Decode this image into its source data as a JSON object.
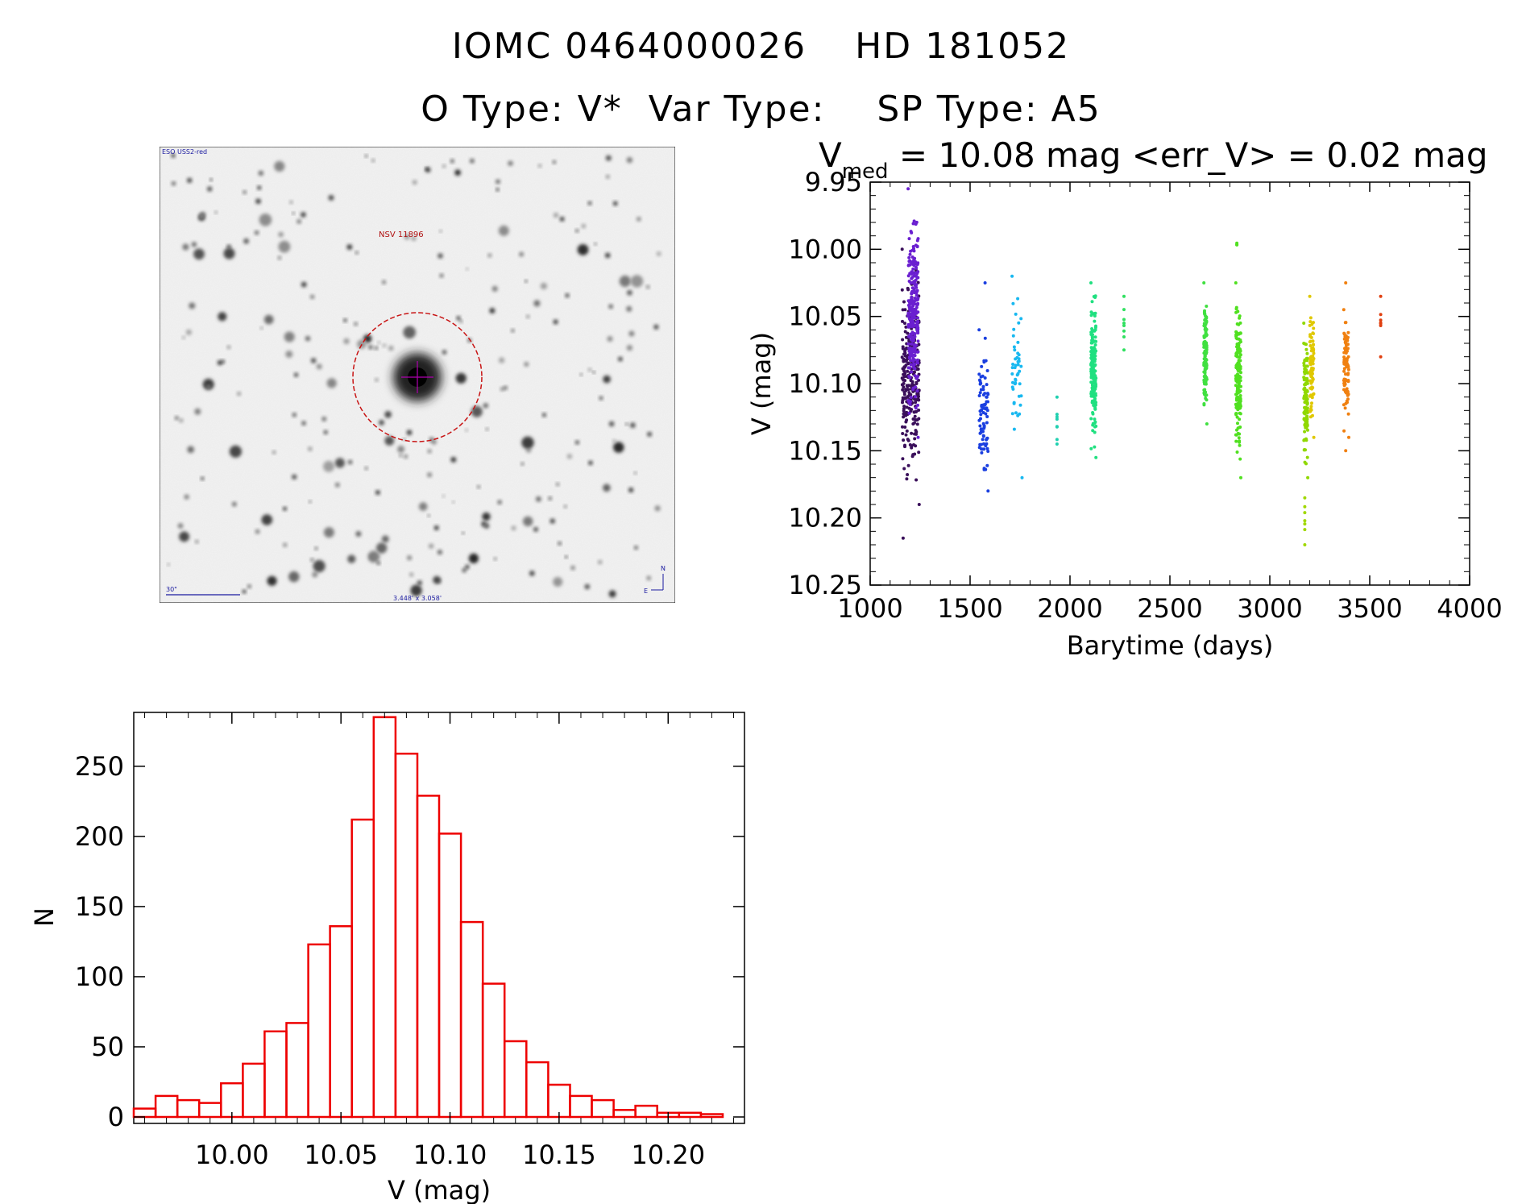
{
  "header": {
    "iomc_id": "IOMC 0464000026",
    "hd_id": "HD 181052",
    "o_type": "O Type: V*",
    "var_type": "Var Type:",
    "sp_type": "SP Type: A5"
  },
  "sky_image": {
    "survey": "ESO USS2-red",
    "object_label": "NSV 11896",
    "scale_label": "30\"",
    "size_label": "3.448' x 3.058'",
    "north": "N",
    "east": "E"
  },
  "colors": {
    "histogram": "#ee0000",
    "circle": "#c81414",
    "crosshair": "#b000b0"
  },
  "chart_data": [
    {
      "type": "scatter",
      "title_main": "V",
      "title_sub": "med",
      "title_rest": " = 10.08 mag <err_V> = 0.02 mag",
      "xlabel": "Barytime (days)",
      "ylabel": "V (mag)",
      "xlim": [
        1000,
        4000
      ],
      "ylim": [
        10.25,
        9.95
      ],
      "y_inverted": true,
      "x_ticks": [
        "1000",
        "1500",
        "2000",
        "2500",
        "3000",
        "3500",
        "4000"
      ],
      "y_ticks": [
        "9.95",
        "10.00",
        "10.05",
        "10.10",
        "10.15",
        "10.20",
        "10.25"
      ],
      "point_colors": "color encodes time (violet → red)",
      "groups": [
        {
          "x": 1160,
          "x_end": 1245,
          "ymin": 10.0,
          "ymax": 10.19,
          "n": 260,
          "color": "#3a0f5a"
        },
        {
          "x": 1190,
          "x_end": 1240,
          "ymin": 9.955,
          "ymax": 10.14,
          "n": 260,
          "color": "#6a1fd0"
        },
        {
          "x": 1165,
          "ymin": 10.215,
          "ymax": 10.215,
          "n": 1,
          "color": "#3a0f5a"
        },
        {
          "x": 1545,
          "x_end": 1590,
          "ymin": 10.06,
          "ymax": 10.18,
          "n": 80,
          "color": "#1a3fe0"
        },
        {
          "x": 1575,
          "ymin": 10.025,
          "ymax": 10.025,
          "n": 1,
          "color": "#1a3fe0"
        },
        {
          "x": 1710,
          "x_end": 1760,
          "ymin": 10.02,
          "ymax": 10.17,
          "n": 45,
          "color": "#18b8f0"
        },
        {
          "x": 1935,
          "ymin": 10.11,
          "ymax": 10.145,
          "n": 6,
          "color": "#20d0b0"
        },
        {
          "x": 2105,
          "x_end": 2130,
          "ymin": 10.025,
          "ymax": 10.155,
          "n": 160,
          "color": "#20e080"
        },
        {
          "x": 2270,
          "ymin": 10.035,
          "ymax": 10.075,
          "n": 6,
          "color": "#30e060"
        },
        {
          "x": 2670,
          "x_end": 2685,
          "ymin": 10.025,
          "ymax": 10.13,
          "n": 120,
          "color": "#40e040"
        },
        {
          "x": 2830,
          "x_end": 2855,
          "ymin": 10.025,
          "ymax": 10.17,
          "n": 170,
          "color": "#50e020"
        },
        {
          "x": 2835,
          "ymin": 9.975,
          "ymax": 10.005,
          "n": 3,
          "color": "#50e020"
        },
        {
          "x": 3170,
          "x_end": 3190,
          "ymin": 10.055,
          "ymax": 10.17,
          "n": 110,
          "color": "#90d800"
        },
        {
          "x": 3175,
          "ymin": 10.185,
          "ymax": 10.22,
          "n": 5,
          "color": "#a0d800"
        },
        {
          "x": 3200,
          "x_end": 3220,
          "ymin": 10.035,
          "ymax": 10.14,
          "n": 80,
          "color": "#e0c800"
        },
        {
          "x": 3370,
          "x_end": 3395,
          "ymin": 10.045,
          "ymax": 10.14,
          "n": 90,
          "color": "#f08010"
        },
        {
          "x": 3380,
          "ymin": 10.025,
          "ymax": 10.025,
          "n": 1,
          "color": "#f08010"
        },
        {
          "x": 3380,
          "ymin": 10.15,
          "ymax": 10.15,
          "n": 1,
          "color": "#f08010"
        },
        {
          "x": 3555,
          "ymin": 10.035,
          "ymax": 10.08,
          "n": 5,
          "color": "#e04010"
        }
      ]
    },
    {
      "type": "bar",
      "subtype": "histogram",
      "xlabel": "V (mag)",
      "ylabel": "N",
      "xlim": [
        9.955,
        10.235
      ],
      "ylim": [
        0,
        293
      ],
      "x_ticks": [
        "10.00",
        "10.05",
        "10.10",
        "10.15",
        "10.20"
      ],
      "y_ticks": [
        "0",
        "50",
        "100",
        "150",
        "200",
        "250"
      ],
      "bin_width": 0.01,
      "bin_start": 9.96,
      "values": [
        6,
        15,
        12,
        10,
        24,
        38,
        61,
        67,
        123,
        136,
        212,
        285,
        259,
        229,
        202,
        139,
        95,
        54,
        39,
        23,
        15,
        12,
        5,
        8,
        3,
        3,
        2
      ]
    }
  ]
}
